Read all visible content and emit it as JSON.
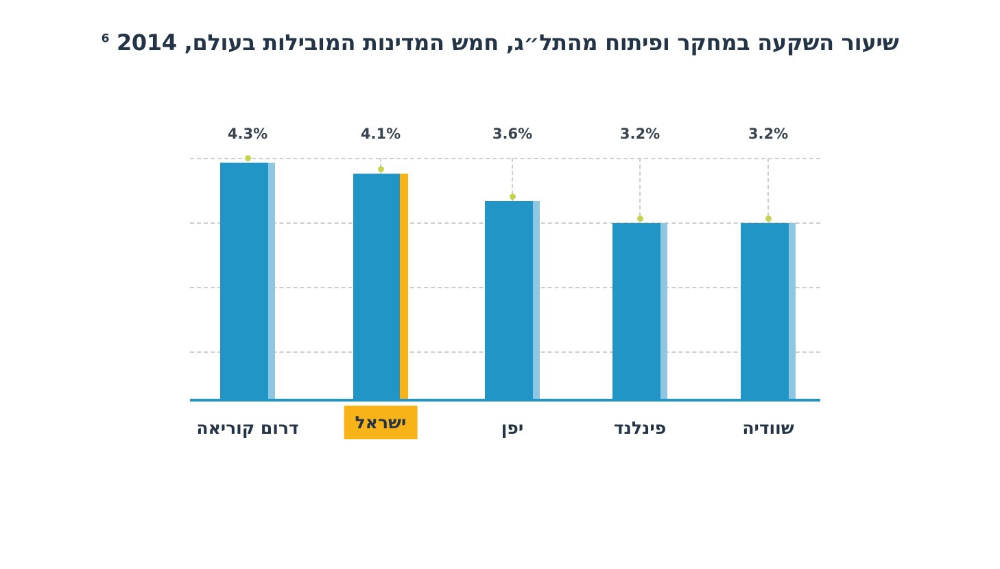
{
  "page": {
    "background": "#FFFFFF"
  },
  "title": {
    "text": "שיעור השקעה במחקר ופיתוח מהתל״ג, חמש המדינות המובילות בעולם, 2014",
    "footnote_marker": "6"
  },
  "chart_data": {
    "type": "bar",
    "direction": "rtl",
    "title": "שיעור השקעה במחקר ופיתוח מהתל״ג, חמש המדינות המובילות בעולם, 2014",
    "footnote_marker": "6",
    "categories": [
      "דרום קוריאה",
      "ישראל",
      "יפן",
      "פינלנד",
      "שוודיה"
    ],
    "values": [
      4.3,
      4.1,
      3.6,
      3.2,
      3.2
    ],
    "value_labels": [
      "4.3%",
      "4.1%",
      "3.6%",
      "3.2%",
      "3.2%"
    ],
    "highlight_index": 1,
    "highlighted_category": "ישראל",
    "ylim": [
      0,
      4.4
    ],
    "grid": "horizontal-dashed",
    "legend": "none",
    "colors": {
      "bar": "#2196C6",
      "bar_edge_strip": "#8FC7E3",
      "highlight": "#F8B319",
      "marker_dot": "#C6D34F",
      "axis": "#2196C6",
      "gridline": "#CDCDCD",
      "title_text": "#233447",
      "category_text": "#233447",
      "value_text": "#3A4450"
    }
  }
}
